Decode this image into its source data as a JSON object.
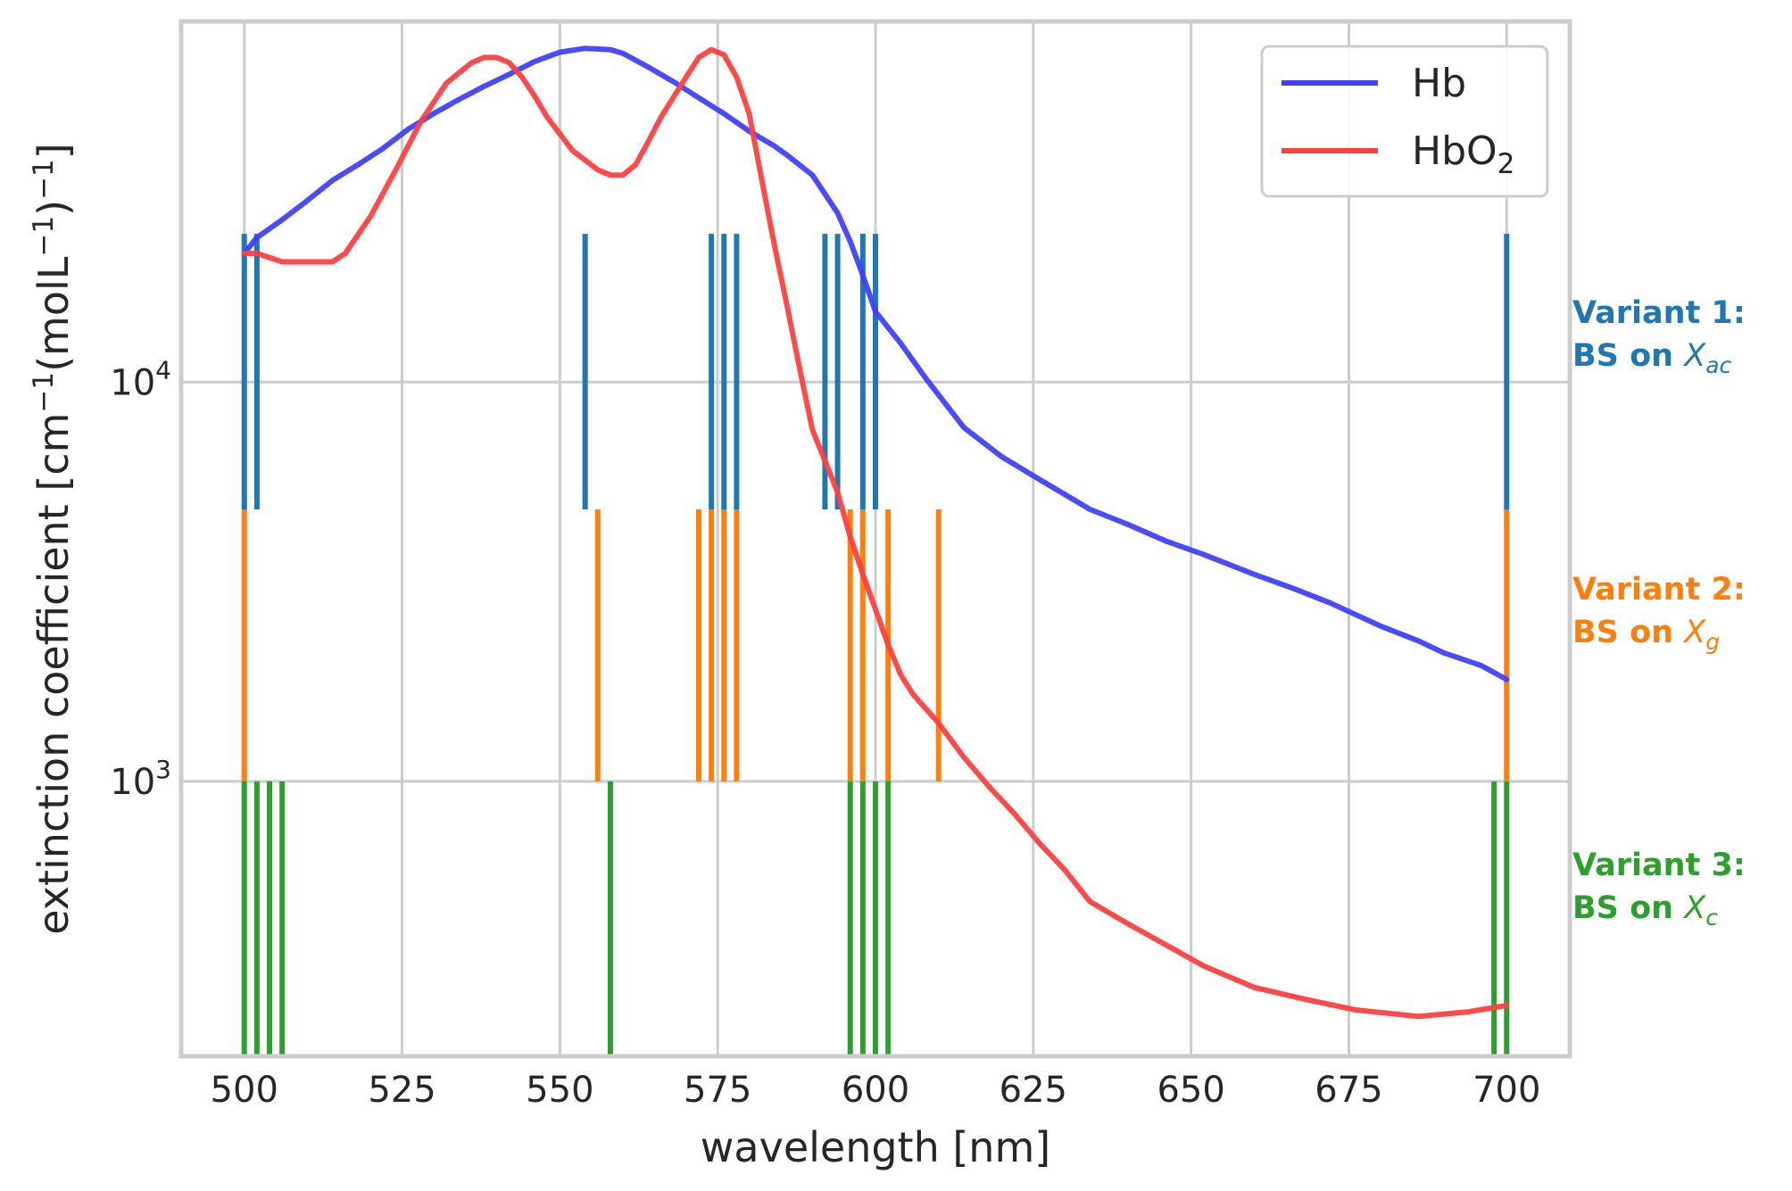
{
  "chart_data": {
    "type": "line",
    "xlabel": "wavelength [nm]",
    "ylabel_main": "extinction coefficient [cm",
    "ylabel_sup1": "−1",
    "ylabel_mid": "(molL",
    "ylabel_sup2": "−1",
    "ylabel_close": ")",
    "ylabel_sup3": "−1",
    "ylabel_end": "]",
    "xlim": [
      490,
      710
    ],
    "ylim": [
      205,
      80000
    ],
    "yscale": "log",
    "grid": true,
    "legend_position": "top-right",
    "x_ticks": [
      {
        "value": 500,
        "label": "500"
      },
      {
        "value": 525,
        "label": "525"
      },
      {
        "value": 550,
        "label": "550"
      },
      {
        "value": 575,
        "label": "575"
      },
      {
        "value": 600,
        "label": "600"
      },
      {
        "value": 625,
        "label": "625"
      },
      {
        "value": 650,
        "label": "650"
      },
      {
        "value": 675,
        "label": "675"
      },
      {
        "value": 700,
        "label": "700"
      }
    ],
    "y_ticks": [
      {
        "value": 1000,
        "base": "10",
        "exp": "3"
      },
      {
        "value": 10000,
        "base": "10",
        "exp": "4"
      }
    ],
    "series": [
      {
        "name": "Hb",
        "name_base": "Hb",
        "name_sub": "",
        "color": "#4040ff",
        "x": [
          500,
          502,
          506,
          510,
          514,
          518,
          522,
          526,
          530,
          534,
          538,
          542,
          546,
          550,
          554,
          558,
          560,
          564,
          568,
          572,
          576,
          580,
          584,
          586,
          590,
          594,
          596,
          598,
          600,
          604,
          608,
          614,
          620,
          626,
          634,
          640,
          646,
          652,
          660,
          666,
          672,
          680,
          686,
          690,
          696,
          700
        ],
        "y": [
          21000,
          23000,
          25500,
          28500,
          32000,
          35000,
          38500,
          43000,
          47000,
          51000,
          55000,
          59000,
          63500,
          67000,
          68500,
          68000,
          66500,
          61500,
          56500,
          51500,
          47000,
          42500,
          39000,
          37000,
          33000,
          26500,
          22500,
          18500,
          15000,
          12500,
          10200,
          7700,
          6500,
          5700,
          4800,
          4400,
          4000,
          3700,
          3300,
          3050,
          2800,
          2450,
          2250,
          2100,
          1950,
          1800
        ]
      },
      {
        "name": "HbO2",
        "name_base": "HbO",
        "name_sub": "2",
        "color": "#ff4040",
        "x": [
          500,
          502,
          506,
          510,
          514,
          516,
          520,
          524,
          528,
          532,
          536,
          538,
          540,
          542,
          544,
          546,
          548,
          552,
          556,
          558,
          560,
          562,
          564,
          566,
          570,
          572,
          574,
          576,
          578,
          580,
          582,
          584,
          586,
          588,
          590,
          594,
          596,
          598,
          600,
          602,
          604,
          606,
          610,
          614,
          618,
          622,
          626,
          630,
          634,
          640,
          646,
          652,
          660,
          668,
          676,
          686,
          694,
          700
        ],
        "y": [
          21000,
          21000,
          20000,
          20000,
          20000,
          21000,
          26000,
          34000,
          45000,
          56000,
          63000,
          65000,
          65000,
          63000,
          58000,
          52000,
          46000,
          38000,
          34000,
          33000,
          33000,
          35000,
          40000,
          46000,
          58000,
          65000,
          68000,
          66000,
          58000,
          47000,
          32000,
          22000,
          15500,
          10800,
          7600,
          5300,
          4100,
          3300,
          2700,
          2200,
          1850,
          1650,
          1400,
          1150,
          970,
          830,
          700,
          600,
          500,
          440,
          390,
          345,
          305,
          285,
          268,
          258,
          265,
          275
        ]
      }
    ],
    "variants": [
      {
        "label_line1": "Variant 1:",
        "label_prefix": "BS on ",
        "label_sym": "X",
        "label_sub": "ac",
        "color": "#1f77b4",
        "y_range": [
          4800,
          23500
        ],
        "wavelengths": [
          500,
          502,
          554,
          574,
          576,
          578,
          592,
          594,
          598,
          600,
          700
        ]
      },
      {
        "label_line1": "Variant 2:",
        "label_prefix": "BS on ",
        "label_sym": "X",
        "label_sub": "g",
        "color": "#ff7f0e",
        "y_range": [
          1000,
          4800
        ],
        "wavelengths": [
          500,
          556,
          572,
          574,
          576,
          578,
          596,
          598,
          602,
          610,
          700
        ]
      },
      {
        "label_line1": "Variant 3:",
        "label_prefix": "BS on ",
        "label_sym": "X",
        "label_sub": "c",
        "color": "#2ca02c",
        "y_range": [
          205,
          1000
        ],
        "wavelengths": [
          500,
          502,
          504,
          506,
          558,
          596,
          598,
          600,
          602,
          698,
          700
        ]
      }
    ]
  }
}
